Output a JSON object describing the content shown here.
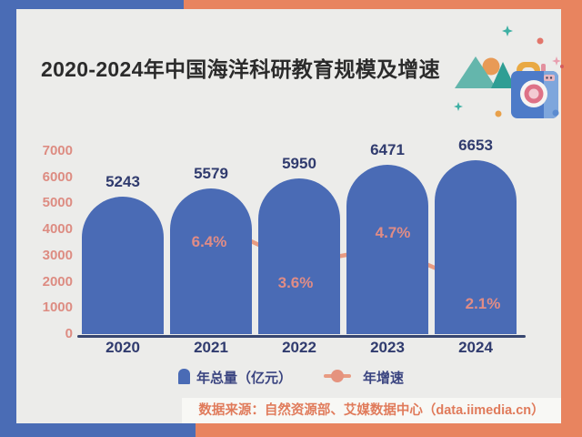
{
  "title": "2020-2024年中国海洋科研教育规模及增速",
  "chart_data": {
    "type": "bar",
    "categories": [
      "2020",
      "2021",
      "2022",
      "2023",
      "2024"
    ],
    "series": [
      {
        "name": "年总量（亿元）",
        "type": "bar",
        "values": [
          5243,
          5579,
          5950,
          6471,
          6653
        ]
      },
      {
        "name": "年增速",
        "type": "line",
        "unit": "%",
        "values": [
          null,
          6.4,
          3.6,
          4.7,
          2.1
        ],
        "point_labels": [
          "",
          "6.4%",
          "3.6%",
          "4.7%",
          "2.1%"
        ]
      }
    ],
    "title": "2020-2024年中国海洋科研教育规模及增速",
    "xlabel": "",
    "ylabel": "",
    "y_ticks": [
      0,
      1000,
      2000,
      3000,
      4000,
      5000,
      6000,
      7000
    ],
    "ylim": [
      0,
      7000
    ],
    "grid": false,
    "legend_position": "bottom"
  },
  "legend": {
    "bar_label": "年总量（亿元）",
    "line_label": "年增速"
  },
  "source": {
    "text": "数据来源：自然资源部、艾媒数据中心（data.iimedia.cn）"
  },
  "colors": {
    "bar_blue": "#4A6BB5",
    "frame_blue": "#4A6CB5",
    "frame_salmon": "#E8845F",
    "panel_bg": "#ECECEA",
    "navy_text": "#303B6E",
    "y_label_pink": "#DD8C82",
    "line_salmon": "#E89B82",
    "pct_label_pink": "#E08C86",
    "title_text": "#2B2B2B",
    "source_text": "#E07B5B",
    "deco_teal": "#5DB3A9",
    "deco_orange": "#E89A56"
  },
  "decorations": {
    "items": [
      "mountains",
      "sun",
      "camera",
      "sparkles",
      "dots"
    ]
  }
}
